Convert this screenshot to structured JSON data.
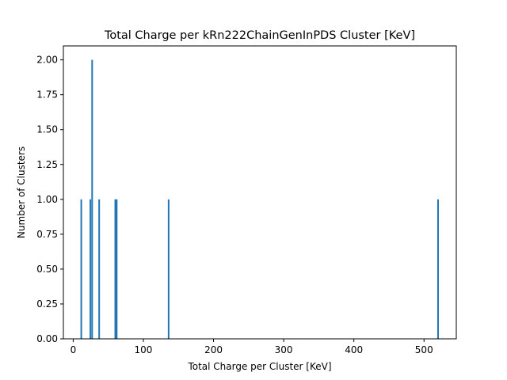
{
  "chart_data": {
    "type": "bar",
    "title": "Total Charge per kRn222ChainGenInPDS Cluster [KeV]",
    "xlabel": "Total Charge per Cluster [KeV]",
    "ylabel": "Number of Clusters",
    "xlim": [
      -14,
      546
    ],
    "ylim": [
      0,
      2.1
    ],
    "xticks": [
      0,
      100,
      200,
      300,
      400,
      500
    ],
    "yticks": [
      0.0,
      0.25,
      0.5,
      0.75,
      1.0,
      1.25,
      1.5,
      1.75,
      2.0
    ],
    "x": [
      11.5,
      24.5,
      27,
      37,
      60,
      62,
      136,
      520
    ],
    "values": [
      1,
      1,
      2,
      1,
      1,
      1,
      1,
      1
    ],
    "bar_color": "#1f77b4",
    "grid": false
  }
}
